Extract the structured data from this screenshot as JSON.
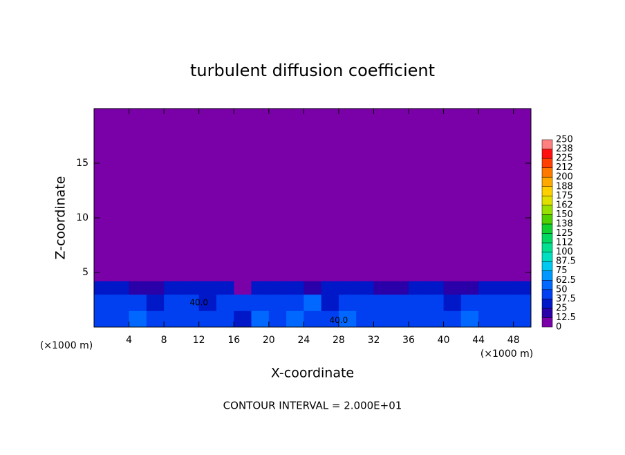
{
  "chart_data": {
    "type": "heatmap",
    "title": "turbulent diffusion coefficient",
    "xlabel": "X-coordinate",
    "ylabel": "Z-coordinate",
    "x_unit": "(×1000 m)",
    "y_unit": "(×1000 m)",
    "footer": "CONTOUR INTERVAL = 2.000E+01",
    "xlim": [
      0,
      50
    ],
    "ylim": [
      0,
      20
    ],
    "xticks": [
      4,
      8,
      12,
      16,
      20,
      24,
      28,
      32,
      36,
      40,
      44,
      48
    ],
    "yticks": [
      5,
      10,
      15
    ],
    "background_value": 0,
    "x_edges": [
      0,
      2,
      4,
      6,
      8,
      10,
      12,
      14,
      16,
      18,
      20,
      22,
      24,
      26,
      28,
      30,
      32,
      34,
      36,
      38,
      40,
      42,
      44,
      46,
      48,
      50
    ],
    "y_edges": [
      0,
      1.5,
      3,
      4.2
    ],
    "values": [
      [
        45,
        40,
        50,
        42,
        38,
        45,
        48,
        40,
        35,
        52,
        45,
        58,
        40,
        42,
        50,
        44,
        38,
        46,
        40,
        42,
        38,
        55,
        48,
        40,
        44
      ],
      [
        38,
        42,
        45,
        30,
        40,
        44,
        35,
        42,
        48,
        40,
        38,
        45,
        50,
        36,
        44,
        48,
        40,
        38,
        45,
        42,
        35,
        40,
        44,
        38,
        42
      ],
      [
        25,
        30,
        20,
        15,
        30,
        28,
        32,
        25,
        12,
        30,
        28,
        26,
        18,
        30,
        32,
        28,
        22,
        20,
        30,
        28,
        24,
        18,
        30,
        26,
        28
      ]
    ],
    "annotations": [
      {
        "text": "40.0",
        "x": 12,
        "y": 2.2
      },
      {
        "text": "40.0",
        "x": 28,
        "y": 0.6
      }
    ],
    "colorbar": {
      "levels": [
        0,
        12.5,
        25,
        37.5,
        50,
        62.5,
        75,
        87.5,
        100,
        112,
        125,
        138,
        150,
        162,
        175,
        188,
        200,
        212,
        225,
        238,
        250
      ],
      "colors": [
        "#7a00a8",
        "#2a00a8",
        "#0018c8",
        "#0040f0",
        "#0068ff",
        "#0098ff",
        "#00c8f0",
        "#00e0c0",
        "#00e090",
        "#00d860",
        "#10d030",
        "#50d000",
        "#98e000",
        "#e0e000",
        "#ffd000",
        "#ffa800",
        "#ff7800",
        "#ff4000",
        "#ff1010",
        "#ff8080"
      ]
    }
  }
}
